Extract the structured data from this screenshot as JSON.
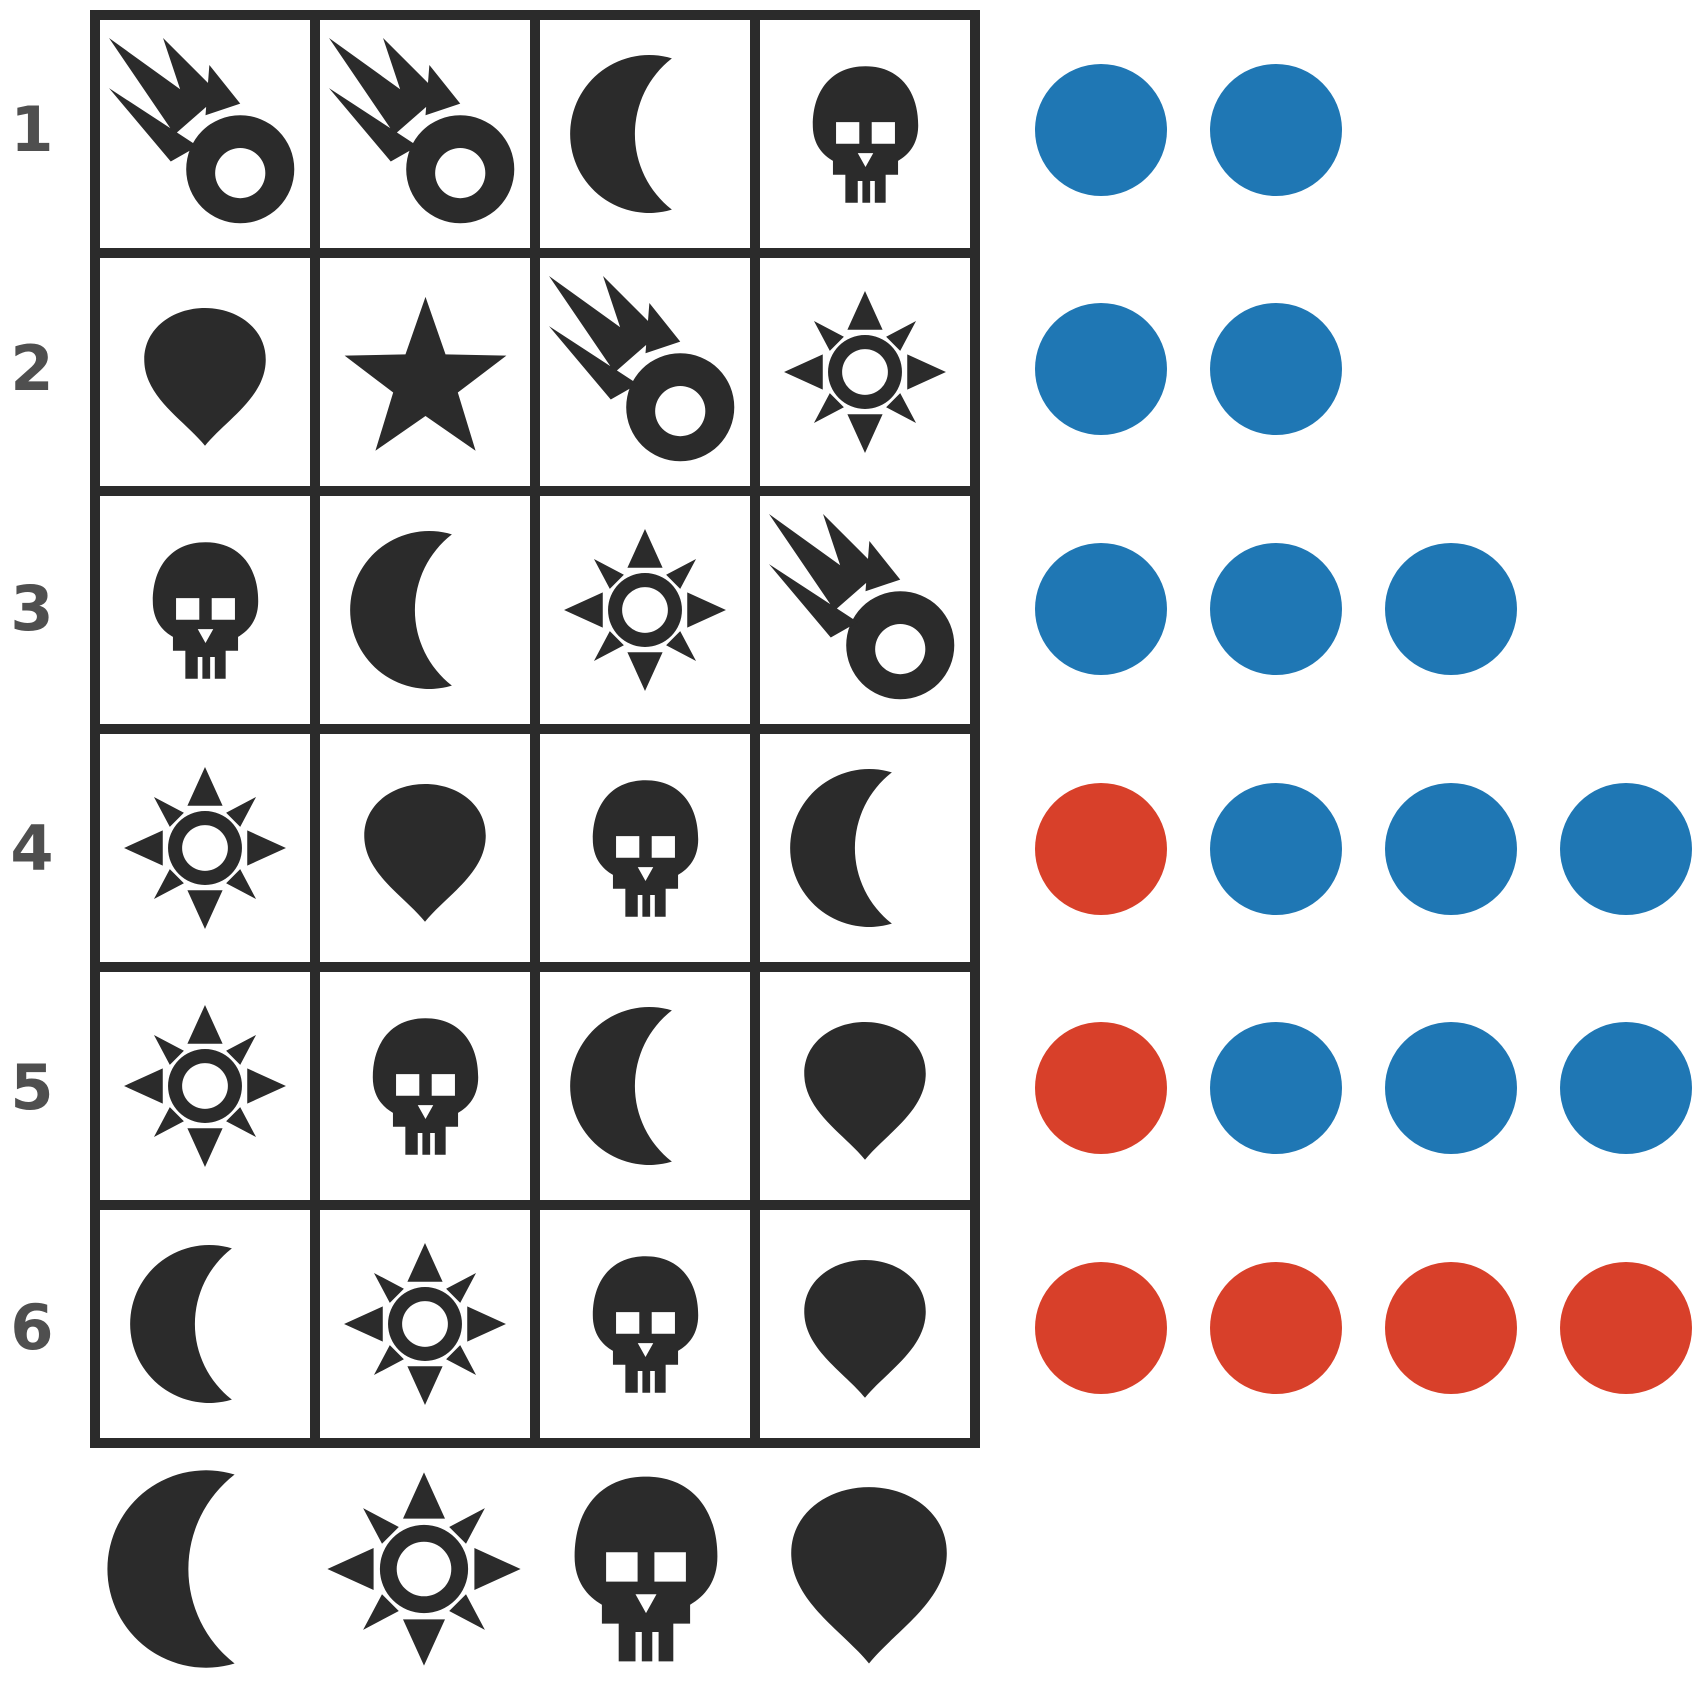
{
  "colors": {
    "background": "#ffffff",
    "ink": "#2b2b2b",
    "row_number": "#4f4f4f",
    "peg_blue": "#1f77b4",
    "peg_red": "#d8402a"
  },
  "board": {
    "rows": [
      {
        "number": "1",
        "icons": [
          "comet",
          "comet",
          "moon",
          "skull"
        ],
        "pegs": [
          "blue",
          "blue"
        ]
      },
      {
        "number": "2",
        "icons": [
          "gem",
          "star",
          "comet",
          "sun"
        ],
        "pegs": [
          "blue",
          "blue"
        ]
      },
      {
        "number": "3",
        "icons": [
          "skull",
          "moon",
          "sun",
          "comet"
        ],
        "pegs": [
          "blue",
          "blue",
          "blue"
        ]
      },
      {
        "number": "4",
        "icons": [
          "sun",
          "gem",
          "skull",
          "moon"
        ],
        "pegs": [
          "red",
          "blue",
          "blue",
          "blue"
        ]
      },
      {
        "number": "5",
        "icons": [
          "sun",
          "skull",
          "moon",
          "gem"
        ],
        "pegs": [
          "red",
          "blue",
          "blue",
          "blue"
        ]
      },
      {
        "number": "6",
        "icons": [
          "moon",
          "sun",
          "skull",
          "gem"
        ],
        "pegs": [
          "red",
          "red",
          "red",
          "red"
        ]
      }
    ],
    "answer_icons": [
      "moon",
      "sun",
      "skull",
      "gem"
    ]
  }
}
